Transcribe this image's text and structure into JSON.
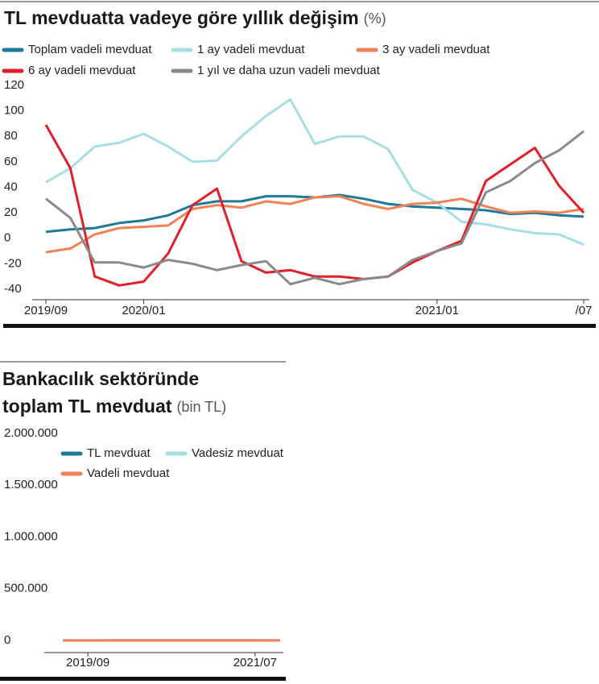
{
  "chart_data": [
    {
      "type": "line",
      "title": "TL mevduatta vadeye göre yıllık değişim",
      "subtitle": "(%)",
      "categories": [
        "2019/09",
        null,
        null,
        null,
        "2020/01",
        null,
        null,
        null,
        null,
        null,
        null,
        null,
        null,
        null,
        null,
        null,
        "2021/01",
        null,
        null,
        null,
        null,
        null,
        "/07"
      ],
      "series": [
        {
          "name": "Toplam vadeli mevduat",
          "color": "#1f7a99",
          "values": [
            5,
            7,
            8,
            12,
            14,
            18,
            26,
            29,
            29,
            33,
            33,
            32,
            34,
            31,
            27,
            25,
            24,
            23,
            22,
            19,
            20,
            18,
            17
          ]
        },
        {
          "name": "1 ay vadeli mevduat",
          "color": "#a6dfe3",
          "values": [
            44,
            55,
            72,
            75,
            82,
            72,
            60,
            61,
            80,
            96,
            109,
            74,
            80,
            80,
            70,
            38,
            28,
            13,
            11,
            7,
            4,
            3,
            -5
          ]
        },
        {
          "name": "3 ay vadeli mevduat",
          "color": "#ef8257",
          "values": [
            -11,
            -8,
            3,
            8,
            9,
            10,
            23,
            26,
            24,
            29,
            27,
            32,
            33,
            27,
            23,
            27,
            28,
            31,
            25,
            20,
            21,
            20,
            23
          ]
        },
        {
          "name": "6 ay vadeli mevduat",
          "color": "#e2202a",
          "values": [
            89,
            55,
            -30,
            -37,
            -34,
            -12,
            26,
            39,
            -18,
            -27,
            -25,
            -30,
            -30,
            -32,
            -30,
            -19,
            -10,
            -2,
            45,
            58,
            71,
            41,
            20
          ]
        },
        {
          "name": "1 yıl ve daha uzun vadeli mevduat",
          "color": "#8a8a8a",
          "values": [
            31,
            16,
            -19,
            -19,
            -23,
            -17,
            -20,
            -25,
            -21,
            -18,
            -36,
            -31,
            -36,
            -32,
            -30,
            -17,
            -10,
            -4,
            36,
            45,
            59,
            69,
            84
          ]
        }
      ],
      "ylim": [
        -40,
        120
      ],
      "yticks": [
        -40,
        -20,
        0,
        20,
        40,
        60,
        80,
        100,
        120
      ],
      "grid": false
    },
    {
      "type": "line",
      "title": [
        "Bankacılık sektöründe",
        "toplam TL mevduat"
      ],
      "subtitle": "(bin TL)",
      "categories": [
        null,
        null,
        null,
        "2019/09",
        null,
        null,
        null,
        null,
        null,
        null,
        null,
        null,
        null,
        null,
        null,
        null,
        null,
        null,
        null,
        null,
        null,
        null,
        null,
        "2021/07",
        null,
        null,
        null
      ],
      "series": [
        {
          "name": "TL mevduat",
          "color": "#1f7a99",
          "values": [
            960,
            990,
            1040,
            1080,
            1130,
            1150,
            1190,
            1240,
            1300,
            1320,
            1380,
            1400,
            1390,
            1420,
            1410,
            1380,
            1400,
            1400,
            1430,
            1460,
            1490,
            1510,
            1530,
            1550,
            1580,
            1600,
            1630
          ]
        },
        {
          "name": "Vadesiz mevduat",
          "color": "#a6dfe3",
          "values": [
            790,
            810,
            840,
            860,
            880,
            890,
            900,
            930,
            970,
            990,
            980,
            1020,
            1050,
            1060,
            1080,
            1100,
            1100,
            1090,
            1100,
            1100,
            1110,
            1140,
            1160,
            1170,
            1180,
            1210,
            1230
          ]
        },
        {
          "name": "Vadeli mevduat",
          "color": "#ef8257",
          "values": [
            170,
            175,
            180,
            200,
            210,
            220,
            230,
            250,
            300,
            310,
            330,
            330,
            310,
            300,
            300,
            290,
            270,
            265,
            270,
            280,
            290,
            300,
            310,
            320,
            330,
            350,
            370
          ]
        }
      ],
      "ylim": [
        0,
        2000000
      ],
      "yticks": [
        0,
        {
          "value": 500000,
          "label": "500.000"
        },
        {
          "value": 1000000,
          "label": "1.000.000"
        },
        {
          "value": 1500000,
          "label": "1.500.000"
        },
        {
          "value": 2000000,
          "label": "2.000.000"
        }
      ],
      "grid": false
    }
  ]
}
